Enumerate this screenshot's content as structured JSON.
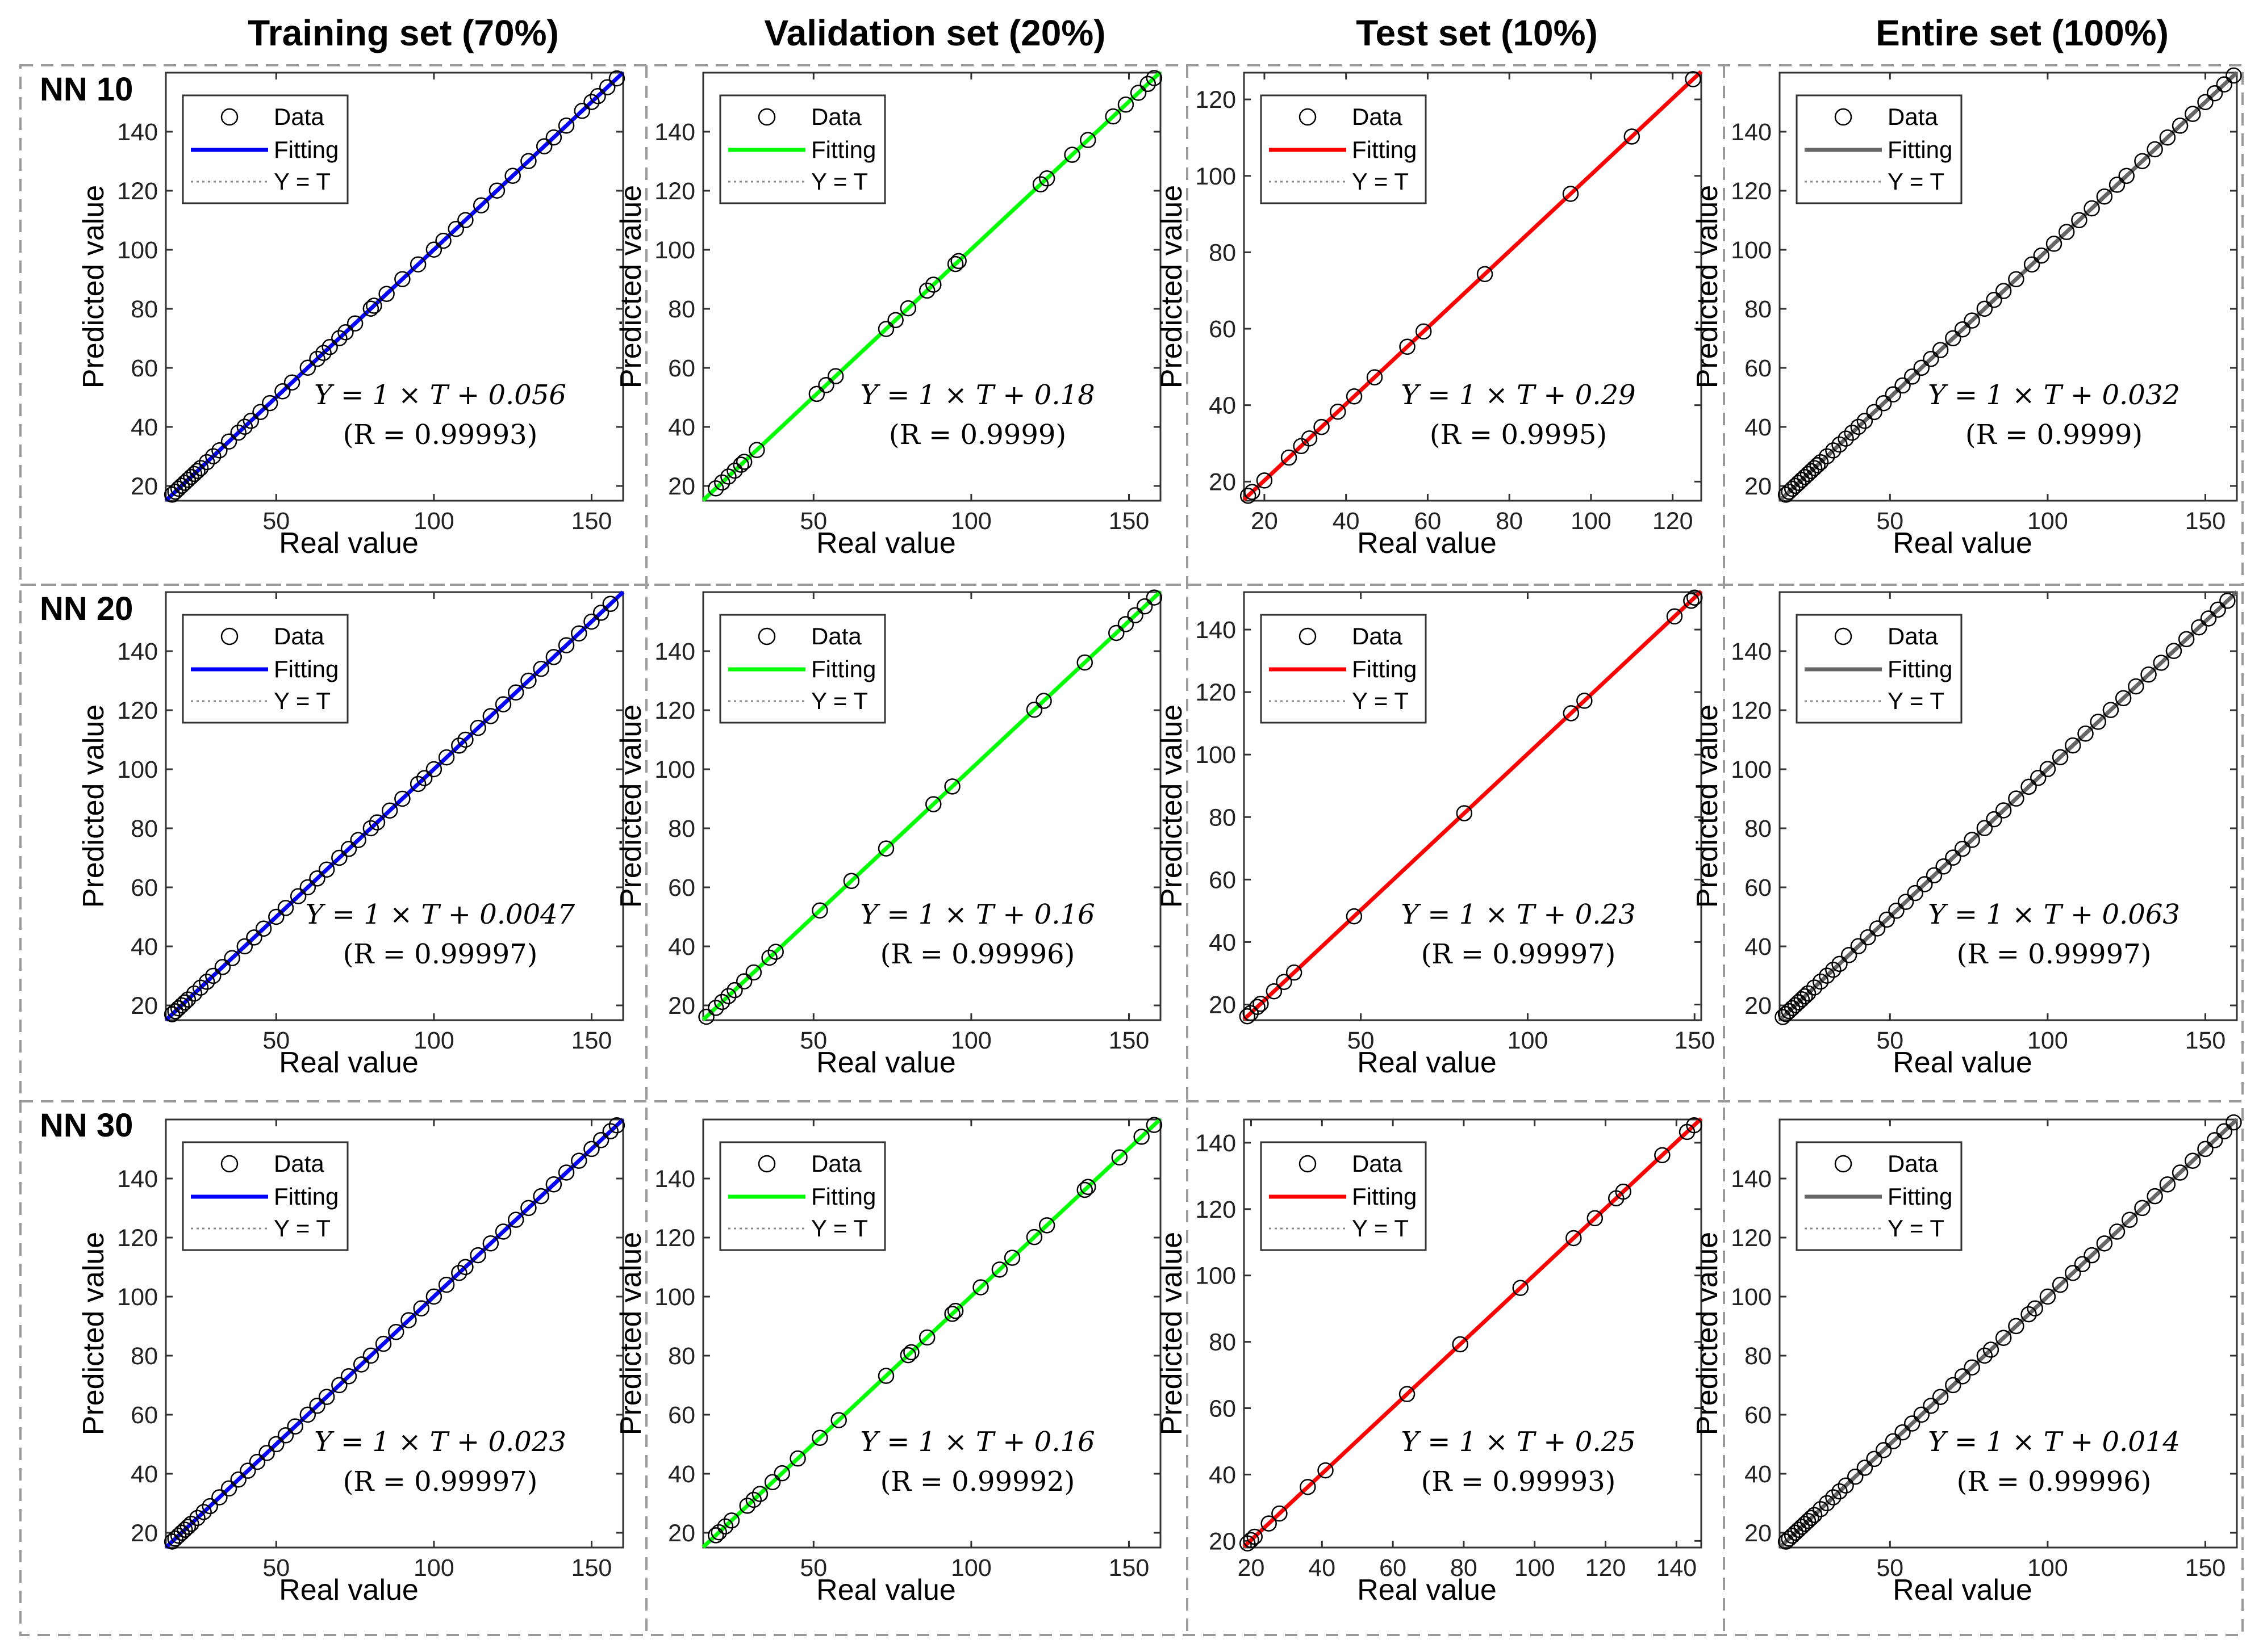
{
  "columns": [
    "Training set (70%)",
    "Validation set (20%)",
    "Test set (10%)",
    "Entire set (100%)"
  ],
  "rows": [
    "NN 10",
    "NN 20",
    "NN 30"
  ],
  "legend": [
    "Data",
    "Fitting",
    "Y = T"
  ],
  "colors": {
    "training": "#0000ff",
    "validation": "#00ff00",
    "test": "#ff0000",
    "entire": "#666666",
    "data_marker": "#000000",
    "identity": "#888888",
    "frame_dash": "#9a9a9a"
  },
  "chart_data": [
    {
      "type": "scatter",
      "row": "NN 10",
      "column": "Training set (70%)",
      "xlabel": "Real value",
      "ylabel": "Predicted value",
      "xlim": [
        15,
        160
      ],
      "ylim": [
        15,
        160
      ],
      "xticks": [
        50,
        100,
        150
      ],
      "yticks": [
        20,
        40,
        60,
        80,
        100,
        120,
        140
      ],
      "fit_color": "#0000ff",
      "equation": "Y = 1 × T + 0.056",
      "r_text": "(R = 0.99993)",
      "slope": 1,
      "intercept": 0.056,
      "x": [
        17,
        18,
        19,
        20,
        21,
        22,
        23,
        24,
        25,
        26,
        28,
        30,
        32,
        35,
        38,
        40,
        42,
        45,
        48,
        52,
        55,
        60,
        63,
        65,
        67,
        70,
        72,
        75,
        80,
        81,
        85,
        90,
        95,
        100,
        103,
        107,
        110,
        115,
        120,
        125,
        130,
        135,
        138,
        142,
        147,
        150,
        152,
        155,
        158
      ]
    },
    {
      "type": "scatter",
      "row": "NN 10",
      "column": "Validation set (20%)",
      "xlabel": "Real value",
      "ylabel": "Predicted value",
      "xlim": [
        15,
        160
      ],
      "ylim": [
        15,
        160
      ],
      "xticks": [
        50,
        100,
        150
      ],
      "yticks": [
        20,
        40,
        60,
        80,
        100,
        120,
        140
      ],
      "fit_color": "#00ff00",
      "equation": "Y = 1 × T + 0.18",
      "r_text": "(R = 0.9999)",
      "slope": 1,
      "intercept": 0.18,
      "x": [
        19,
        21,
        23,
        25,
        27,
        28,
        32,
        51,
        54,
        57,
        73,
        76,
        80,
        86,
        88,
        95,
        96,
        122,
        124,
        132,
        137,
        145,
        149,
        153,
        156,
        158
      ]
    },
    {
      "type": "scatter",
      "row": "NN 10",
      "column": "Test set (10%)",
      "xlabel": "Real value",
      "ylabel": "Predicted value",
      "xlim": [
        15,
        127
      ],
      "ylim": [
        15,
        127
      ],
      "xticks": [
        20,
        40,
        60,
        80,
        100,
        120
      ],
      "yticks": [
        20,
        40,
        60,
        80,
        100,
        120
      ],
      "fit_color": "#ff0000",
      "equation": "Y = 1 × T + 0.29",
      "r_text": "(R = 0.9995)",
      "slope": 1,
      "intercept": 0.29,
      "x": [
        16,
        17,
        20,
        26,
        29,
        31,
        34,
        38,
        42,
        47,
        55,
        59,
        74,
        95,
        110,
        125
      ]
    },
    {
      "type": "scatter",
      "row": "NN 10",
      "column": "Entire set (100%)",
      "xlabel": "Real value",
      "ylabel": "Predicted value",
      "xlim": [
        15,
        160
      ],
      "ylim": [
        15,
        160
      ],
      "xticks": [
        50,
        100,
        150
      ],
      "yticks": [
        20,
        40,
        60,
        80,
        100,
        120,
        140
      ],
      "fit_color": "#666666",
      "equation": "Y = 1 × T + 0.032",
      "r_text": "(R = 0.9999)",
      "slope": 1,
      "intercept": 0.032,
      "x": [
        17,
        18,
        19,
        20,
        21,
        22,
        23,
        24,
        25,
        26,
        27,
        28,
        30,
        32,
        34,
        36,
        38,
        40,
        42,
        45,
        48,
        51,
        54,
        57,
        60,
        63,
        66,
        70,
        73,
        76,
        80,
        83,
        86,
        90,
        95,
        98,
        102,
        106,
        110,
        114,
        118,
        122,
        125,
        130,
        134,
        138,
        142,
        146,
        150,
        153,
        156,
        159
      ]
    },
    {
      "type": "scatter",
      "row": "NN 20",
      "column": "Training set (70%)",
      "xlabel": "Real value",
      "ylabel": "Predicted value",
      "xlim": [
        15,
        160
      ],
      "ylim": [
        15,
        160
      ],
      "xticks": [
        50,
        100,
        150
      ],
      "yticks": [
        20,
        40,
        60,
        80,
        100,
        120,
        140
      ],
      "fit_color": "#0000ff",
      "equation": "Y = 1 × T + 0.0047",
      "r_text": "(R = 0.99997)",
      "slope": 1,
      "intercept": 0.0047,
      "x": [
        17,
        18,
        19,
        20,
        21,
        22,
        24,
        26,
        28,
        30,
        33,
        36,
        40,
        43,
        46,
        50,
        53,
        57,
        60,
        63,
        66,
        70,
        73,
        76,
        80,
        82,
        86,
        90,
        95,
        97,
        100,
        104,
        108,
        110,
        114,
        118,
        122,
        126,
        130,
        134,
        138,
        142,
        146,
        150,
        153,
        156
      ]
    },
    {
      "type": "scatter",
      "row": "NN 20",
      "column": "Validation set (20%)",
      "xlabel": "Real value",
      "ylabel": "Predicted value",
      "xlim": [
        15,
        160
      ],
      "ylim": [
        15,
        160
      ],
      "xticks": [
        50,
        100,
        150
      ],
      "yticks": [
        20,
        40,
        60,
        80,
        100,
        120,
        140
      ],
      "fit_color": "#00ff00",
      "equation": "Y = 1 × T + 0.16",
      "r_text": "(R = 0.99996)",
      "slope": 1,
      "intercept": 0.16,
      "x": [
        16,
        19,
        21,
        23,
        25,
        28,
        31,
        36,
        38,
        52,
        62,
        73,
        88,
        94,
        120,
        123,
        136,
        146,
        149,
        152,
        155,
        158
      ]
    },
    {
      "type": "scatter",
      "row": "NN 20",
      "column": "Test set (10%)",
      "xlabel": "Real value",
      "ylabel": "Predicted value",
      "xlim": [
        15,
        152
      ],
      "ylim": [
        15,
        152
      ],
      "xticks": [
        50,
        100,
        150
      ],
      "yticks": [
        20,
        40,
        60,
        80,
        100,
        120,
        140
      ],
      "fit_color": "#ff0000",
      "equation": "Y = 1 × T + 0.23",
      "r_text": "(R = 0.99997)",
      "slope": 1,
      "intercept": 0.23,
      "x": [
        16,
        17,
        19,
        20,
        24,
        27,
        30,
        48,
        81,
        113,
        117,
        144,
        149,
        150
      ]
    },
    {
      "type": "scatter",
      "row": "NN 20",
      "column": "Entire set (100%)",
      "xlabel": "Real value",
      "ylabel": "Predicted value",
      "xlim": [
        15,
        160
      ],
      "ylim": [
        15,
        160
      ],
      "xticks": [
        50,
        100,
        150
      ],
      "yticks": [
        20,
        40,
        60,
        80,
        100,
        120,
        140
      ],
      "fit_color": "#666666",
      "equation": "Y = 1 × T + 0.063",
      "r_text": "(R = 0.99997)",
      "slope": 1,
      "intercept": 0.063,
      "x": [
        16,
        17,
        18,
        19,
        20,
        21,
        22,
        23,
        24,
        26,
        28,
        30,
        32,
        34,
        37,
        40,
        43,
        46,
        49,
        52,
        55,
        58,
        61,
        64,
        67,
        70,
        73,
        76,
        80,
        83,
        86,
        90,
        94,
        97,
        100,
        104,
        108,
        112,
        116,
        120,
        124,
        128,
        132,
        136,
        140,
        144,
        148,
        151,
        154,
        157
      ]
    },
    {
      "type": "scatter",
      "row": "NN 30",
      "column": "Training set (70%)",
      "xlabel": "Real value",
      "ylabel": "Predicted value",
      "xlim": [
        15,
        160
      ],
      "ylim": [
        15,
        160
      ],
      "xticks": [
        50,
        100,
        150
      ],
      "yticks": [
        20,
        40,
        60,
        80,
        100,
        120,
        140
      ],
      "fit_color": "#0000ff",
      "equation": "Y = 1 × T + 0.023",
      "r_text": "(R = 0.99997)",
      "slope": 1,
      "intercept": 0.023,
      "x": [
        17,
        18,
        19,
        20,
        21,
        22,
        23,
        25,
        27,
        29,
        32,
        35,
        38,
        41,
        44,
        47,
        50,
        53,
        56,
        60,
        63,
        66,
        70,
        73,
        77,
        80,
        84,
        88,
        92,
        96,
        100,
        104,
        108,
        110,
        114,
        118,
        122,
        126,
        130,
        134,
        138,
        142,
        146,
        150,
        153,
        156,
        158
      ]
    },
    {
      "type": "scatter",
      "row": "NN 30",
      "column": "Validation set (20%)",
      "xlabel": "Real value",
      "ylabel": "Predicted value",
      "xlim": [
        15,
        160
      ],
      "ylim": [
        15,
        160
      ],
      "xticks": [
        50,
        100,
        150
      ],
      "yticks": [
        20,
        40,
        60,
        80,
        100,
        120,
        140
      ],
      "fit_color": "#00ff00",
      "equation": "Y = 1 × T + 0.16",
      "r_text": "(R = 0.99992)",
      "slope": 1,
      "intercept": 0.16,
      "x": [
        19,
        20,
        22,
        24,
        29,
        31,
        33,
        37,
        40,
        45,
        52,
        58,
        73,
        80,
        81,
        86,
        94,
        95,
        103,
        109,
        113,
        120,
        124,
        136,
        137,
        147,
        154,
        158
      ]
    },
    {
      "type": "scatter",
      "row": "NN 30",
      "column": "Test set (10%)",
      "xlabel": "Real value",
      "ylabel": "Predicted value",
      "xlim": [
        18,
        147
      ],
      "ylim": [
        18,
        147
      ],
      "xticks": [
        20,
        40,
        60,
        80,
        100,
        120,
        140
      ],
      "yticks": [
        20,
        40,
        60,
        80,
        100,
        120,
        140
      ],
      "fit_color": "#ff0000",
      "equation": "Y = 1 × T + 0.25",
      "r_text": "(R = 0.99993)",
      "slope": 1,
      "intercept": 0.25,
      "x": [
        19,
        20,
        21,
        25,
        28,
        36,
        41,
        64,
        79,
        96,
        111,
        117,
        123,
        125,
        136,
        143,
        145
      ]
    },
    {
      "type": "scatter",
      "row": "NN 30",
      "column": "Entire set (100%)",
      "xlabel": "Real value",
      "ylabel": "Predicted value",
      "xlim": [
        15,
        160
      ],
      "ylim": [
        15,
        160
      ],
      "xticks": [
        50,
        100,
        150
      ],
      "yticks": [
        20,
        40,
        60,
        80,
        100,
        120,
        140
      ],
      "fit_color": "#666666",
      "equation": "Y = 1 × T + 0.014",
      "r_text": "(R = 0.99996)",
      "slope": 1,
      "intercept": 0.014,
      "x": [
        17,
        18,
        19,
        20,
        21,
        22,
        23,
        24,
        25,
        26,
        28,
        30,
        32,
        34,
        36,
        39,
        42,
        45,
        48,
        51,
        54,
        57,
        60,
        63,
        66,
        70,
        73,
        76,
        80,
        82,
        86,
        90,
        94,
        96,
        100,
        104,
        108,
        111,
        114,
        118,
        122,
        126,
        130,
        134,
        138,
        142,
        146,
        150,
        153,
        156,
        159
      ]
    }
  ]
}
